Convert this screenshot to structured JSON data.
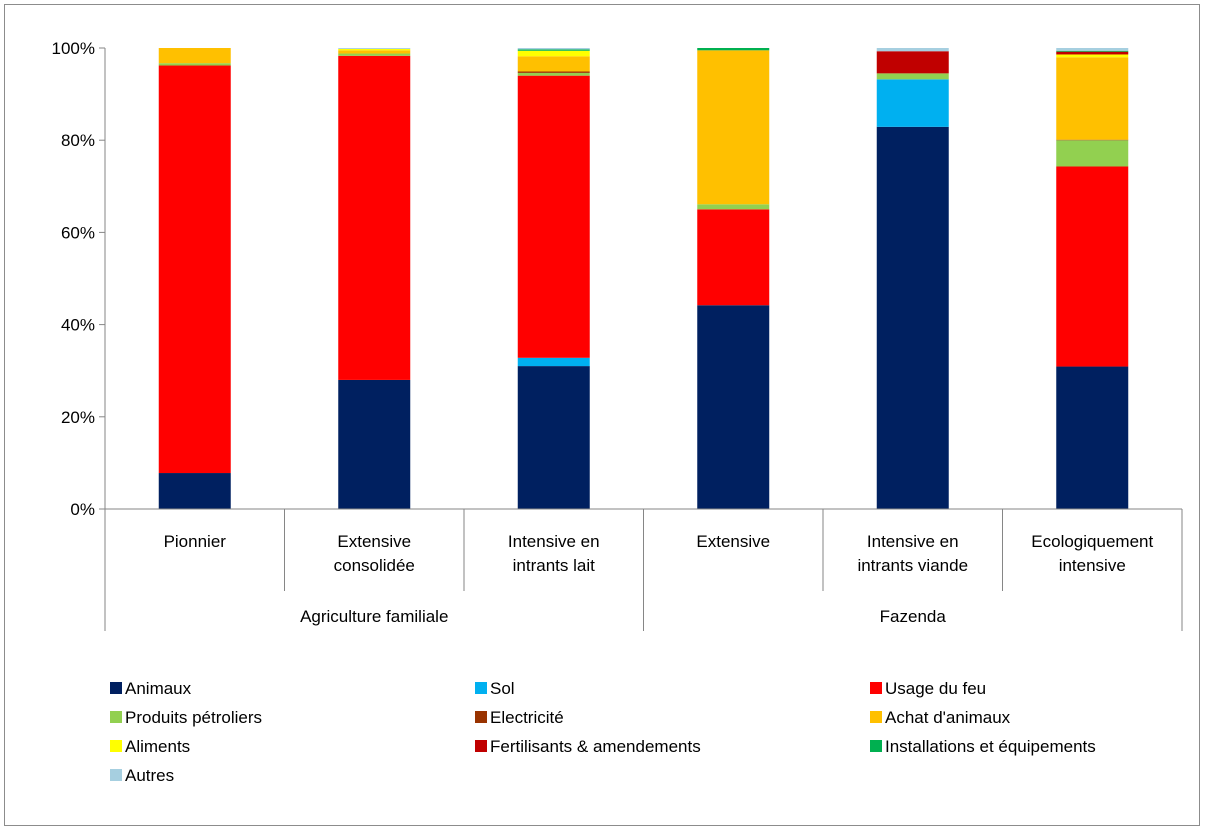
{
  "chart_data": {
    "type": "bar",
    "stacked": true,
    "percent": true,
    "y_ticks": [
      "0%",
      "20%",
      "40%",
      "60%",
      "80%",
      "100%"
    ],
    "ylim": [
      0,
      100
    ],
    "grid": false,
    "legend_position": "bottom",
    "groups": [
      "Agriculture familiale",
      "Fazenda"
    ],
    "categories": [
      [
        "Pionnier"
      ],
      [
        "Extensive",
        "consolidée"
      ],
      [
        "Intensive en",
        "intrants lait"
      ],
      [
        "Extensive"
      ],
      [
        "Intensive en",
        "intrants viande"
      ],
      [
        "Ecologiquement",
        "intensive"
      ]
    ],
    "category_group": [
      0,
      0,
      0,
      1,
      1,
      1
    ],
    "series": [
      {
        "name": "Animaux",
        "color": "#002060",
        "values": [
          7.8,
          28.0,
          31.0,
          44.2,
          82.9,
          30.9
        ]
      },
      {
        "name": "Sol",
        "color": "#00b0f0",
        "values": [
          0,
          0,
          1.8,
          0,
          10.3,
          0
        ]
      },
      {
        "name": "Usage du feu",
        "color": "#ff0000",
        "values": [
          88.4,
          70.3,
          61.2,
          20.8,
          0,
          43.4
        ]
      },
      {
        "name": "Produits pétroliers",
        "color": "#92d050",
        "values": [
          0.5,
          0.5,
          0.6,
          1.1,
          1.3,
          5.7
        ]
      },
      {
        "name": "Electricité",
        "color": "#993300",
        "values": [
          0,
          0,
          0.3,
          0,
          0,
          0.1
        ]
      },
      {
        "name": "Achat d'animaux",
        "color": "#ffc000",
        "values": [
          3.3,
          0.7,
          3.3,
          33.4,
          0,
          17.9
        ]
      },
      {
        "name": "Aliments",
        "color": "#ffff00",
        "values": [
          0,
          0.3,
          1.2,
          0,
          0,
          0.6
        ]
      },
      {
        "name": "Fertilisants & amendements",
        "color": "#c00000",
        "values": [
          0,
          0,
          0,
          0,
          4.8,
          0.6
        ]
      },
      {
        "name": "Installations et équipements",
        "color": "#00b050",
        "values": [
          0,
          0,
          0.3,
          0.5,
          0,
          0.2
        ]
      },
      {
        "name": "Autres",
        "color": "#a6cfe0",
        "values": [
          0,
          0.2,
          0.3,
          0,
          0.7,
          0.6
        ]
      }
    ]
  }
}
